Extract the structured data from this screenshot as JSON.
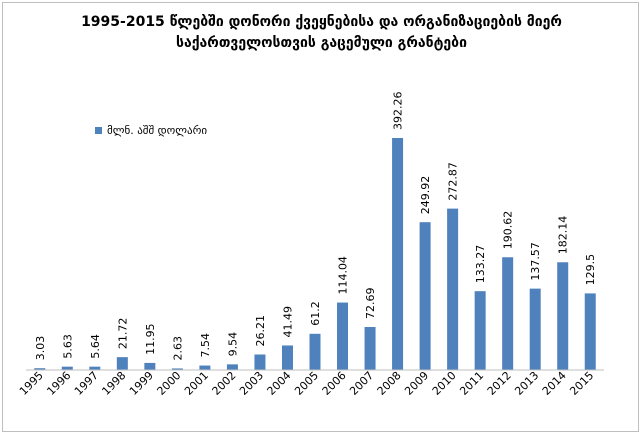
{
  "chart_data": {
    "type": "bar",
    "title": [
      "1995-2015 წლებში დონორი ქვეყნებისა და ორგანიზაციების მიერ",
      "საქართველოსთვის გაცემული გრანტები"
    ],
    "categories": [
      "1995",
      "1996",
      "1997",
      "1998",
      "1999",
      "2000",
      "2001",
      "2002",
      "2003",
      "2004",
      "2005",
      "2006",
      "2007",
      "2008",
      "2009",
      "2010",
      "2011",
      "2012",
      "2013",
      "2014",
      "2015"
    ],
    "series": [
      {
        "name": "მლნ. აშშ დოლარი",
        "values": [
          3.03,
          5.63,
          5.64,
          21.72,
          11.95,
          2.63,
          7.54,
          9.54,
          26.21,
          41.49,
          61.2,
          114.04,
          72.69,
          392.26,
          249.92,
          272.87,
          133.27,
          190.62,
          137.57,
          182.14,
          129.5
        ],
        "labels": [
          "3.03",
          "5.63",
          "5.64",
          "21.72",
          "11.95",
          "2.63",
          "7.54",
          "9.54",
          "26.21",
          "41.49",
          "61.2",
          "114.04",
          "72.69",
          "392.26",
          "249.92",
          "272.87",
          "133.27",
          "190.62",
          "137.57",
          "182.14",
          "129.5"
        ],
        "color": "#4f81bd"
      }
    ],
    "xlabel": "",
    "ylabel": "",
    "ylim": [
      0,
      392.26
    ],
    "grid": false,
    "legend": "top-left"
  }
}
